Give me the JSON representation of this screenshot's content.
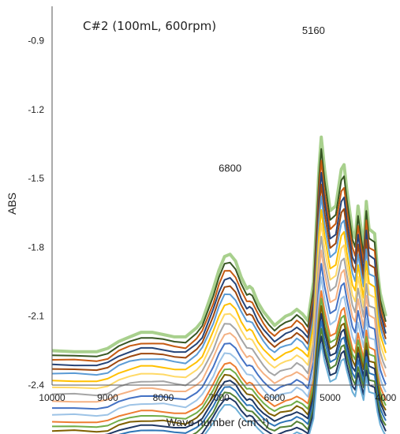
{
  "chart_data": {
    "type": "line",
    "title": "C#2 (100mL, 600rpm)",
    "xlabel": "Wave number (cm⁻¹)",
    "ylabel": "ABS",
    "xlim": [
      10000,
      4000
    ],
    "ylim": [
      -2.4,
      -0.75
    ],
    "xticks": [
      {
        "value": 10000,
        "label": "10000"
      },
      {
        "value": 9000,
        "label": "9000"
      },
      {
        "value": 8000,
        "label": "8000"
      },
      {
        "value": 7000,
        "label": "7000"
      },
      {
        "value": 6000,
        "label": "6000"
      },
      {
        "value": 5000,
        "label": "5000"
      },
      {
        "value": 4000,
        "label": "4000"
      }
    ],
    "yticks": [
      {
        "value": -0.9,
        "label": "-0.9"
      },
      {
        "value": -1.2,
        "label": "-1.2"
      },
      {
        "value": -1.5,
        "label": "-1.5"
      },
      {
        "value": -1.8,
        "label": "-1.8"
      },
      {
        "value": -2.1,
        "label": "-2.1"
      },
      {
        "value": -2.4,
        "label": "-2.4"
      }
    ],
    "annotations": [
      {
        "text": "6800",
        "x": 6800,
        "y": -1.47
      },
      {
        "text": "5160",
        "x": 5300,
        "y": -0.87
      }
    ],
    "grid": false,
    "legend": "none",
    "base_profile": {
      "x": [
        10000,
        9600,
        9200,
        9000,
        8800,
        8600,
        8400,
        8200,
        8000,
        7800,
        7600,
        7400,
        7300,
        7200,
        7100,
        7000,
        6900,
        6800,
        6700,
        6600,
        6500,
        6450,
        6400,
        6300,
        6200,
        6100,
        6000,
        5900,
        5800,
        5700,
        5600,
        5500,
        5400,
        5300,
        5200,
        5160,
        5100,
        5000,
        4900,
        4800,
        4750,
        4700,
        4600,
        4550,
        4500,
        4400,
        4350,
        4300,
        4200,
        4150,
        4100,
        4050,
        4000
      ],
      "y": [
        -2.25,
        -2.255,
        -2.255,
        -2.24,
        -2.21,
        -2.19,
        -2.17,
        -2.17,
        -2.18,
        -2.19,
        -2.19,
        -2.15,
        -2.12,
        -2.05,
        -1.98,
        -1.9,
        -1.84,
        -1.83,
        -1.86,
        -1.93,
        -1.98,
        -1.97,
        -1.98,
        -2.04,
        -2.08,
        -2.11,
        -2.14,
        -2.12,
        -2.1,
        -2.09,
        -2.07,
        -2.09,
        -2.12,
        -1.95,
        -1.45,
        -1.32,
        -1.46,
        -1.64,
        -1.62,
        -1.46,
        -1.44,
        -1.55,
        -1.73,
        -1.76,
        -1.62,
        -1.8,
        -1.6,
        -1.72,
        -1.74,
        -1.9,
        -2.0,
        -2.05,
        -2.1
      ]
    },
    "series": [
      {
        "color": "#a8d08d",
        "y_shift": 0.0,
        "peak_scale": 1.0
      },
      {
        "color": "#375623",
        "y_shift": -0.02,
        "peak_scale": 0.96
      },
      {
        "color": "#c55a11",
        "y_shift": -0.04,
        "peak_scale": 0.92
      },
      {
        "color": "#264478",
        "y_shift": -0.06,
        "peak_scale": 0.88
      },
      {
        "color": "#9e480e",
        "y_shift": -0.08,
        "peak_scale": 0.84
      },
      {
        "color": "#5b9bd5",
        "y_shift": -0.1,
        "peak_scale": 0.8
      },
      {
        "color": "#ffc000",
        "y_shift": -0.13,
        "peak_scale": 0.76
      },
      {
        "color": "#ffd966",
        "y_shift": -0.16,
        "peak_scale": 0.72
      },
      {
        "color": "#a5a5a5",
        "y_shift": -0.19,
        "peak_scale": 0.68
      },
      {
        "color": "#f4b183",
        "y_shift": -0.22,
        "peak_scale": 0.64
      },
      {
        "color": "#4472c4",
        "y_shift": -0.25,
        "peak_scale": 0.6
      },
      {
        "color": "#9dc3e6",
        "y_shift": -0.28,
        "peak_scale": 0.56
      },
      {
        "color": "#ed7d31",
        "y_shift": -0.31,
        "peak_scale": 0.52
      },
      {
        "color": "#70ad47",
        "y_shift": -0.33,
        "peak_scale": 0.5
      },
      {
        "color": "#7f6000",
        "y_shift": -0.35,
        "peak_scale": 0.48
      },
      {
        "color": "#1f3864",
        "y_shift": -0.37,
        "peak_scale": 0.46
      },
      {
        "color": "#2e75b6",
        "y_shift": -0.39,
        "peak_scale": 0.44
      },
      {
        "color": "#548235",
        "y_shift": -0.41,
        "peak_scale": 0.42
      },
      {
        "color": "#203864",
        "y_shift": -0.43,
        "peak_scale": 0.4
      },
      {
        "color": "#6baed6",
        "y_shift": -0.45,
        "peak_scale": 0.38
      }
    ]
  }
}
